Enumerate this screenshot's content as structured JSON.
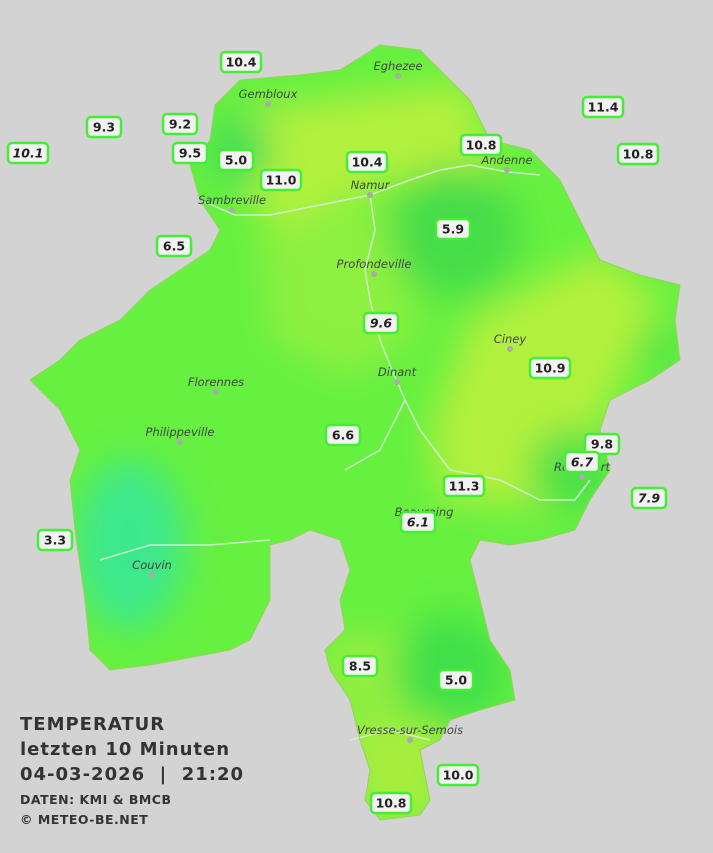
{
  "title": {
    "lines": [
      "TEMPERATUR",
      "letzten 10 Minuten",
      "04-03-2026  |  21:20"
    ],
    "credits": [
      "DATEN: KMI & BMCB",
      "© METEO-BE.NET"
    ]
  },
  "towns": [
    "Eghezee",
    "Gembloux",
    "Andenne",
    "Namur",
    "Sambreville",
    "Profondeville",
    "Ciney",
    "Dinant",
    "Florennes",
    "Philippeville",
    "Rochefort",
    "Beauraing",
    "Couvin",
    "Vresse-sur-Semois"
  ],
  "stations": [
    {
      "label": "10.4",
      "italic": false
    },
    {
      "label": "9.3",
      "italic": false
    },
    {
      "label": "9.2",
      "italic": false
    },
    {
      "label": "10.1",
      "italic": true
    },
    {
      "label": "9.5",
      "italic": false
    },
    {
      "label": "5.0",
      "italic": false
    },
    {
      "label": "11.0",
      "italic": false
    },
    {
      "label": "10.4",
      "italic": false
    },
    {
      "label": "10.8",
      "italic": false
    },
    {
      "label": "11.4",
      "italic": false
    },
    {
      "label": "10.8",
      "italic": false
    },
    {
      "label": "5.9",
      "italic": false
    },
    {
      "label": "6.5",
      "italic": false
    },
    {
      "label": "9.6",
      "italic": true
    },
    {
      "label": "10.9",
      "italic": false
    },
    {
      "label": "6.6",
      "italic": false
    },
    {
      "label": "9.8",
      "italic": false
    },
    {
      "label": "6.7",
      "italic": true
    },
    {
      "label": "11.3",
      "italic": false
    },
    {
      "label": "7.9",
      "italic": true
    },
    {
      "label": "6.1",
      "italic": true
    },
    {
      "label": "3.3",
      "italic": false
    },
    {
      "label": "8.5",
      "italic": false
    },
    {
      "label": "5.0",
      "italic": false
    },
    {
      "label": "10.0",
      "italic": false
    },
    {
      "label": "10.8",
      "italic": false
    }
  ]
}
